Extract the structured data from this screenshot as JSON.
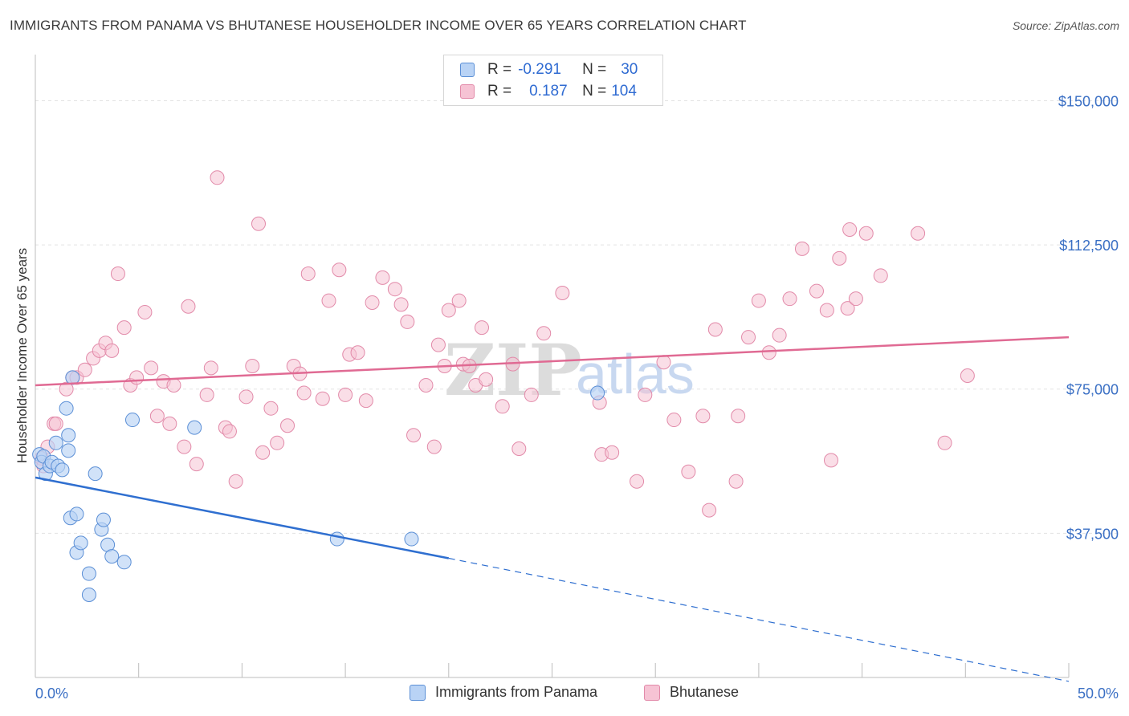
{
  "header": {
    "title": "IMMIGRANTS FROM PANAMA VS BHUTANESE HOUSEHOLDER INCOME OVER 65 YEARS CORRELATION CHART",
    "source": "Source: ZipAtlas.com"
  },
  "watermark": {
    "zip": "ZIP",
    "atlas": "atlas"
  },
  "legend": {
    "rows": [
      {
        "r_label": "R =",
        "r_value": "-0.291",
        "n_label": "N =",
        "n_value": "30"
      },
      {
        "r_label": "R =",
        "r_value": "0.187",
        "n_label": "N =",
        "n_value": "104"
      }
    ],
    "bottom": [
      "Immigrants from Panama",
      "Bhutanese"
    ]
  },
  "colors": {
    "blue_fill": "#b9d3f5",
    "blue_stroke": "#5b8fd6",
    "blue_line": "#2f6fd0",
    "pink_fill": "#f6c3d4",
    "pink_stroke": "#e28aa9",
    "pink_line": "#e06a93"
  },
  "chart_data": {
    "type": "scatter",
    "title": "IMMIGRANTS FROM PANAMA VS BHUTANESE HOUSEHOLDER INCOME OVER 65 YEARS CORRELATION CHART",
    "xlabel": "",
    "ylabel": "Householder Income Over 65 years",
    "xlim": [
      0,
      50
    ],
    "ylim": [
      0,
      162000
    ],
    "x_tick_labels": [
      "0.0%",
      "50.0%"
    ],
    "y_ticks": [
      37500,
      75000,
      112500,
      150000
    ],
    "y_tick_labels": [
      "$37,500",
      "$75,000",
      "$112,500",
      "$150,000"
    ],
    "series": [
      {
        "name": "Immigrants from Panama",
        "points": [
          [
            0.2,
            58000
          ],
          [
            0.3,
            56000
          ],
          [
            0.4,
            57500
          ],
          [
            0.5,
            53000
          ],
          [
            0.7,
            55000
          ],
          [
            0.8,
            56000
          ],
          [
            1.0,
            61000
          ],
          [
            1.1,
            55000
          ],
          [
            1.3,
            54000
          ],
          [
            1.6,
            59000
          ],
          [
            1.7,
            41500
          ],
          [
            1.6,
            63000
          ],
          [
            1.5,
            70000
          ],
          [
            1.8,
            78000
          ],
          [
            2.0,
            42500
          ],
          [
            2.0,
            32500
          ],
          [
            2.2,
            35000
          ],
          [
            2.6,
            27000
          ],
          [
            2.6,
            21500
          ],
          [
            2.9,
            53000
          ],
          [
            3.2,
            38500
          ],
          [
            3.3,
            41000
          ],
          [
            3.5,
            34500
          ],
          [
            3.7,
            31500
          ],
          [
            4.3,
            30000
          ],
          [
            4.7,
            67000
          ],
          [
            7.7,
            65000
          ],
          [
            14.6,
            36000
          ],
          [
            18.2,
            36000
          ],
          [
            27.2,
            74000
          ]
        ],
        "trend": {
          "x0": 0,
          "y0": 52000,
          "x1_solid": 20,
          "y1_solid": 31000,
          "x1": 50,
          "y1": -1000
        }
      },
      {
        "name": "Bhutanese",
        "points": [
          [
            0.3,
            57000
          ],
          [
            0.4,
            55000
          ],
          [
            0.6,
            60000
          ],
          [
            0.9,
            66000
          ],
          [
            1.0,
            66000
          ],
          [
            1.5,
            75000
          ],
          [
            1.8,
            78000
          ],
          [
            2.0,
            78000
          ],
          [
            2.4,
            80000
          ],
          [
            2.8,
            83000
          ],
          [
            3.1,
            85000
          ],
          [
            3.4,
            87000
          ],
          [
            3.7,
            85000
          ],
          [
            4.0,
            105000
          ],
          [
            4.3,
            91000
          ],
          [
            4.6,
            76000
          ],
          [
            4.9,
            78000
          ],
          [
            5.3,
            95000
          ],
          [
            5.6,
            80500
          ],
          [
            5.9,
            68000
          ],
          [
            6.2,
            77000
          ],
          [
            6.5,
            66000
          ],
          [
            6.7,
            76000
          ],
          [
            7.2,
            60000
          ],
          [
            7.4,
            96500
          ],
          [
            7.8,
            55500
          ],
          [
            8.3,
            73500
          ],
          [
            8.5,
            80500
          ],
          [
            8.8,
            130000
          ],
          [
            9.2,
            65000
          ],
          [
            9.4,
            64000
          ],
          [
            9.7,
            51000
          ],
          [
            10.2,
            73000
          ],
          [
            10.5,
            81000
          ],
          [
            10.8,
            118000
          ],
          [
            11.0,
            58500
          ],
          [
            11.4,
            70000
          ],
          [
            11.7,
            61000
          ],
          [
            12.2,
            65500
          ],
          [
            12.5,
            81000
          ],
          [
            12.8,
            79000
          ],
          [
            13.0,
            74000
          ],
          [
            13.2,
            105000
          ],
          [
            13.9,
            72500
          ],
          [
            14.2,
            98000
          ],
          [
            14.7,
            106000
          ],
          [
            15.0,
            73500
          ],
          [
            15.2,
            84000
          ],
          [
            15.6,
            84500
          ],
          [
            16.0,
            72000
          ],
          [
            16.3,
            97500
          ],
          [
            16.8,
            104000
          ],
          [
            17.4,
            101000
          ],
          [
            17.7,
            97000
          ],
          [
            18.0,
            92500
          ],
          [
            18.3,
            63000
          ],
          [
            18.9,
            76000
          ],
          [
            19.3,
            60000
          ],
          [
            19.5,
            86500
          ],
          [
            19.8,
            81000
          ],
          [
            20.0,
            95500
          ],
          [
            20.5,
            98000
          ],
          [
            20.7,
            81500
          ],
          [
            21.0,
            81000
          ],
          [
            21.3,
            76000
          ],
          [
            21.6,
            91000
          ],
          [
            21.8,
            77500
          ],
          [
            22.6,
            70500
          ],
          [
            23.1,
            81500
          ],
          [
            23.4,
            59500
          ],
          [
            24.0,
            73500
          ],
          [
            24.6,
            89500
          ],
          [
            25.5,
            100000
          ],
          [
            27.3,
            71500
          ],
          [
            27.4,
            58000
          ],
          [
            27.9,
            58500
          ],
          [
            29.1,
            51000
          ],
          [
            29.5,
            73500
          ],
          [
            30.4,
            82000
          ],
          [
            30.9,
            67000
          ],
          [
            31.6,
            53500
          ],
          [
            32.3,
            68000
          ],
          [
            32.6,
            43500
          ],
          [
            32.9,
            90500
          ],
          [
            33.9,
            51000
          ],
          [
            34.0,
            68000
          ],
          [
            34.5,
            88500
          ],
          [
            35.0,
            98000
          ],
          [
            35.5,
            84500
          ],
          [
            36.0,
            89000
          ],
          [
            36.5,
            98500
          ],
          [
            37.1,
            111500
          ],
          [
            37.8,
            100500
          ],
          [
            38.3,
            95500
          ],
          [
            38.5,
            56500
          ],
          [
            38.9,
            109000
          ],
          [
            39.3,
            96000
          ],
          [
            39.7,
            98500
          ],
          [
            39.4,
            116500
          ],
          [
            40.2,
            115500
          ],
          [
            40.9,
            104500
          ],
          [
            42.7,
            115500
          ],
          [
            44.0,
            61000
          ],
          [
            45.1,
            78500
          ]
        ],
        "trend": {
          "x0": 0,
          "y0": 76000,
          "x1": 50,
          "y1": 88500
        }
      }
    ]
  }
}
